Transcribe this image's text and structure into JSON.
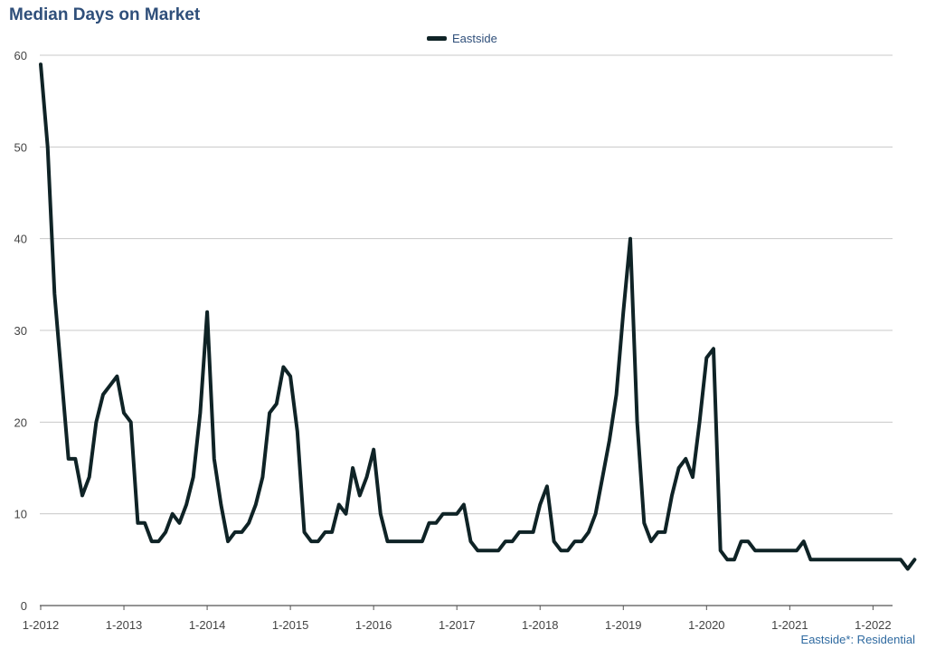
{
  "chart_data": {
    "type": "line",
    "title": "Median Days on Market",
    "xlabel": "",
    "ylabel": "",
    "footnote": "Eastside*: Residential",
    "ylim": [
      0,
      60
    ],
    "yticks": [
      "0",
      "10",
      "20",
      "30",
      "40",
      "50",
      "60"
    ],
    "xticks": [
      "1-2012",
      "1-2013",
      "1-2014",
      "1-2015",
      "1-2016",
      "1-2017",
      "1-2018",
      "1-2019",
      "1-2020",
      "1-2021",
      "1-2022"
    ],
    "grid": true,
    "legend_position": "top-center",
    "line_color": "#0f2326",
    "series": [
      {
        "name": "Eastside",
        "start": "1-2012",
        "frequency": "monthly",
        "values": [
          59,
          50,
          34,
          25,
          16,
          16,
          12,
          14,
          20,
          23,
          24,
          25,
          21,
          20,
          9,
          9,
          7,
          7,
          8,
          10,
          9,
          11,
          14,
          21,
          32,
          16,
          11,
          7,
          8,
          8,
          9,
          11,
          14,
          21,
          22,
          26,
          25,
          19,
          8,
          7,
          7,
          8,
          8,
          11,
          10,
          15,
          12,
          14,
          17,
          10,
          7,
          7,
          7,
          7,
          7,
          7,
          9,
          9,
          10,
          10,
          10,
          11,
          7,
          6,
          6,
          6,
          6,
          7,
          7,
          8,
          8,
          8,
          11,
          13,
          7,
          6,
          6,
          7,
          7,
          8,
          10,
          14,
          18,
          23,
          32,
          40,
          20,
          9,
          7,
          8,
          8,
          12,
          15,
          16,
          14,
          20,
          27,
          28,
          6,
          5,
          5,
          7,
          7,
          6,
          6,
          6,
          6,
          6,
          6,
          6,
          7,
          5,
          5,
          5,
          5,
          5,
          5,
          5,
          5,
          5,
          5,
          5,
          5,
          5,
          5,
          4,
          5
        ]
      }
    ]
  }
}
